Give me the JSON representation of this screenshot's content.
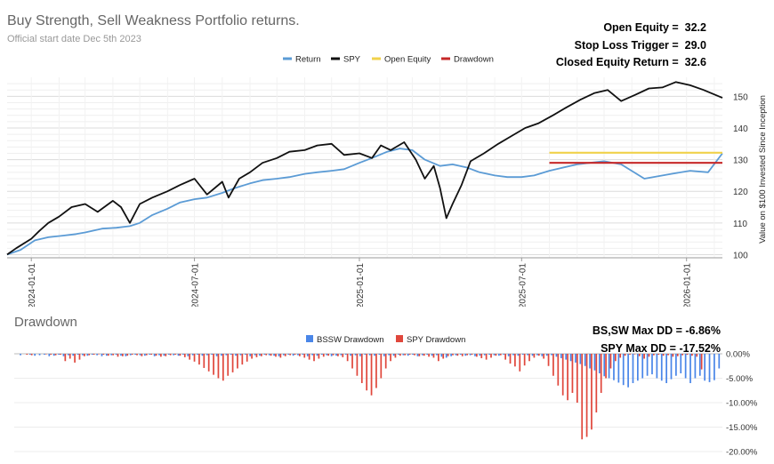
{
  "header": {
    "title": "Buy Strength, Sell Weakness Portfolio returns.",
    "subtitle": "Official start date Dec 5th 2023"
  },
  "stats": [
    {
      "label": "Open Equity =",
      "value": "32.2"
    },
    {
      "label": "Stop Loss Trigger =",
      "value": "29.0"
    },
    {
      "label": "Closed Equity Return =",
      "value": "32.6"
    }
  ],
  "drawdown_header": {
    "title": "Drawdown",
    "stats": [
      {
        "label": "BS,SW Max DD =",
        "value": "-6.86%"
      },
      {
        "label": "SPY Max DD =",
        "value": "-17.52%"
      }
    ]
  },
  "colors": {
    "return": "#5b9bd5",
    "spy": "#111111",
    "open_equity": "#f1d24b",
    "drawdown": "#c62828",
    "bssw_dd": "#4a86e8",
    "spy_dd": "#e0473c",
    "grid": "#e6e6e6"
  },
  "chart_data": [
    {
      "type": "line",
      "ylabel": "Value on $100 Invested Since Inception",
      "ylim": [
        99,
        156
      ],
      "yticks": [
        100,
        110,
        120,
        130,
        140,
        150
      ],
      "xlim": [
        "2023-12-05",
        "2026-02-10"
      ],
      "xticks": [
        "2024-01-01",
        "2024-07-01",
        "2025-01-01",
        "2025-07-01",
        "2026-01-01"
      ],
      "legend_position": "top",
      "series": [
        {
          "name": "Return",
          "color": "#5b9bd5",
          "x": [
            "2023-12-05",
            "2023-12-20",
            "2024-01-05",
            "2024-01-20",
            "2024-02-05",
            "2024-02-20",
            "2024-03-01",
            "2024-03-20",
            "2024-04-05",
            "2024-04-20",
            "2024-05-01",
            "2024-05-15",
            "2024-06-01",
            "2024-06-15",
            "2024-07-01",
            "2024-07-15",
            "2024-08-01",
            "2024-08-15",
            "2024-09-01",
            "2024-09-15",
            "2024-10-01",
            "2024-10-15",
            "2024-11-01",
            "2024-11-15",
            "2024-12-01",
            "2024-12-15",
            "2025-01-01",
            "2025-01-15",
            "2025-02-01",
            "2025-02-15",
            "2025-03-01",
            "2025-03-15",
            "2025-04-01",
            "2025-04-15",
            "2025-05-01",
            "2025-05-15",
            "2025-06-01",
            "2025-06-15",
            "2025-07-01",
            "2025-07-15",
            "2025-08-01",
            "2025-09-01",
            "2025-09-15",
            "2025-10-01",
            "2025-10-20",
            "2025-11-15",
            "2025-12-15",
            "2026-01-05",
            "2026-01-25",
            "2026-02-10"
          ],
          "values": [
            100.0,
            101.5,
            104.5,
            105.5,
            106.0,
            106.5,
            107.0,
            108.2,
            108.5,
            109.0,
            110.0,
            112.5,
            114.5,
            116.5,
            117.5,
            118.0,
            119.5,
            121.0,
            122.5,
            123.5,
            124.0,
            124.5,
            125.5,
            126.0,
            126.5,
            127.0,
            129.0,
            130.5,
            132.5,
            133.5,
            133.0,
            130.0,
            128.0,
            128.5,
            127.5,
            126.0,
            125.0,
            124.5,
            124.5,
            125.0,
            126.5,
            128.5,
            129.0,
            129.5,
            128.5,
            124.0,
            125.5,
            126.5,
            126.0,
            132.0
          ]
        },
        {
          "name": "SPY",
          "color": "#111111",
          "x": [
            "2023-12-05",
            "2023-12-15",
            "2024-01-01",
            "2024-01-10",
            "2024-01-20",
            "2024-02-01",
            "2024-02-15",
            "2024-03-01",
            "2024-03-15",
            "2024-04-01",
            "2024-04-10",
            "2024-04-20",
            "2024-05-01",
            "2024-05-15",
            "2024-06-01",
            "2024-06-15",
            "2024-07-01",
            "2024-07-15",
            "2024-08-01",
            "2024-08-08",
            "2024-08-20",
            "2024-09-01",
            "2024-09-15",
            "2024-10-01",
            "2024-10-15",
            "2024-11-01",
            "2024-11-15",
            "2024-12-01",
            "2024-12-15",
            "2025-01-01",
            "2025-01-15",
            "2025-01-25",
            "2025-02-05",
            "2025-02-20",
            "2025-03-05",
            "2025-03-15",
            "2025-03-25",
            "2025-04-01",
            "2025-04-08",
            "2025-04-15",
            "2025-04-25",
            "2025-05-05",
            "2025-05-20",
            "2025-06-05",
            "2025-06-20",
            "2025-07-05",
            "2025-07-20",
            "2025-08-05",
            "2025-08-20",
            "2025-09-05",
            "2025-09-20",
            "2025-10-05",
            "2025-10-20",
            "2025-11-05",
            "2025-11-20",
            "2025-12-05",
            "2025-12-20",
            "2026-01-05",
            "2026-01-20",
            "2026-02-10"
          ],
          "values": [
            100.0,
            102.0,
            105.0,
            107.5,
            110.0,
            112.0,
            115.0,
            116.0,
            113.5,
            117.0,
            115.0,
            110.0,
            116.0,
            118.0,
            120.0,
            122.0,
            124.0,
            119.0,
            123.0,
            118.0,
            124.0,
            126.0,
            129.0,
            130.5,
            132.5,
            133.0,
            134.5,
            135.0,
            131.5,
            132.0,
            130.5,
            134.5,
            133.0,
            135.5,
            130.0,
            124.0,
            128.0,
            121.0,
            111.5,
            116.0,
            122.0,
            129.5,
            132.0,
            135.0,
            137.5,
            140.0,
            141.5,
            144.0,
            146.5,
            149.0,
            151.0,
            152.0,
            148.5,
            150.5,
            152.5,
            152.8,
            154.5,
            153.5,
            152.0,
            149.5
          ]
        },
        {
          "name": "Open Equity",
          "color": "#f1d24b",
          "x": [
            "2025-08-01",
            "2026-02-10"
          ],
          "values": [
            132.2,
            132.2
          ]
        },
        {
          "name": "Drawdown",
          "color": "#c62828",
          "x": [
            "2025-08-01",
            "2026-02-10"
          ],
          "values": [
            129.0,
            129.0
          ]
        }
      ]
    },
    {
      "type": "bar",
      "title": "Drawdown",
      "ylabel": "",
      "ylim": [
        -20,
        0
      ],
      "yticks": [
        0,
        -5,
        -10,
        -15,
        -20
      ],
      "ytick_labels": [
        "0.00%",
        "-5.00%",
        "-10.00%",
        "-15.00%",
        "-20.00%"
      ],
      "legend_position": "top",
      "series": [
        {
          "name": "BSSW Drawdown",
          "color": "#4a86e8",
          "values": [
            0,
            -0.3,
            0,
            -0.2,
            -0.4,
            -0.3,
            -0.2,
            -0.5,
            -0.4,
            -0.2,
            -0.5,
            -0.3,
            -0.4,
            -0.2,
            -0.3,
            -0.4,
            -0.2,
            -0.3,
            -0.5,
            -0.4,
            -0.3,
            -0.2,
            -0.4,
            -0.5,
            -0.3,
            -0.2,
            -0.3,
            -0.4,
            -0.2,
            -0.5,
            -0.3,
            -0.4,
            -0.2,
            -0.3,
            -0.4,
            -0.2,
            -0.5,
            -0.3,
            -0.2,
            -0.4,
            -0.3,
            -0.2,
            -0.5,
            -0.4,
            -0.3,
            -0.2,
            -0.4,
            -0.3,
            -0.2,
            -0.5,
            -0.3,
            -0.4,
            -0.2,
            -0.3,
            -0.4,
            -0.5,
            -0.3,
            -0.2,
            -0.4,
            -0.3,
            -0.2,
            -0.5,
            -0.3,
            -0.4,
            -0.2,
            -0.3,
            -0.5,
            -0.4,
            -0.3,
            -0.2,
            -0.4,
            -0.3,
            -0.5,
            -0.2,
            -0.3,
            -0.4,
            -0.2,
            -0.5,
            -0.3,
            -0.4,
            -0.2,
            -0.3,
            -0.4,
            -0.2,
            -0.5,
            -0.3,
            -0.2,
            -0.4,
            -0.3,
            -0.6,
            -0.8,
            -0.5,
            -0.3,
            -0.2,
            -0.4,
            -0.3,
            -0.5,
            -0.4,
            -0.3,
            -0.2,
            -0.3,
            -0.4,
            -0.2,
            -0.5,
            -0.3,
            -0.4,
            -0.2,
            -0.3,
            -0.4,
            -0.3,
            -0.5,
            -0.4,
            -0.3,
            -0.6,
            -0.9,
            -1.2,
            -1.5,
            -1.8,
            -2.1,
            -2.5,
            -3.0,
            -3.4,
            -4.0,
            -4.6,
            -5.0,
            -5.4,
            -5.9,
            -6.4,
            -6.86,
            -6.0,
            -5.5,
            -5.0,
            -4.5,
            -4.2,
            -5.0,
            -5.5,
            -6.0,
            -5.2,
            -4.5,
            -4.0,
            -5.0,
            -6.0,
            -5.0,
            -4.5,
            -5.5,
            -5.8,
            -5.4,
            -3.0
          ],
          "note": "approximate per-period values"
        },
        {
          "name": "SPY Drawdown",
          "color": "#e0473c",
          "values": [
            0,
            0,
            -0.2,
            -0.3,
            0,
            0,
            -0.1,
            -0.2,
            -0.3,
            -0.2,
            -1.5,
            -1.0,
            -1.8,
            -1.2,
            -0.5,
            -0.3,
            -0.2,
            -0.1,
            -0.2,
            -0.4,
            -0.3,
            -0.6,
            -0.5,
            -0.4,
            -0.2,
            -0.3,
            -0.5,
            -0.3,
            -0.2,
            -0.4,
            -0.6,
            -0.5,
            -0.3,
            -0.2,
            -0.4,
            -0.7,
            -1.2,
            -1.6,
            -2.2,
            -2.9,
            -3.6,
            -4.3,
            -5.0,
            -5.5,
            -4.5,
            -3.8,
            -3.0,
            -2.2,
            -1.6,
            -1.0,
            -0.7,
            -0.5,
            -0.3,
            -0.4,
            -0.6,
            -0.8,
            -0.5,
            -0.3,
            -0.2,
            -0.5,
            -0.8,
            -1.2,
            -1.5,
            -1.0,
            -0.6,
            -0.4,
            -0.3,
            -0.5,
            -0.7,
            -1.5,
            -3.0,
            -4.5,
            -6.0,
            -7.5,
            -8.5,
            -7.0,
            -5.0,
            -3.0,
            -1.5,
            -0.8,
            -0.4,
            -0.3,
            -0.2,
            -0.3,
            -0.5,
            -0.4,
            -0.6,
            -0.8,
            -1.5,
            -1.0,
            -0.5,
            -0.3,
            -0.4,
            -0.5,
            -0.3,
            -0.2,
            -0.6,
            -0.9,
            -1.2,
            -0.8,
            -0.4,
            -0.3,
            -1.2,
            -2.0,
            -2.6,
            -3.6,
            -2.4,
            -1.5,
            -0.8,
            -0.4,
            -1.0,
            -2.5,
            -4.5,
            -6.5,
            -8.5,
            -9.5,
            -8.0,
            -10.0,
            -17.5,
            -17.0,
            -15.5,
            -12.0,
            -8.0,
            -5.0,
            -3.0,
            -1.5,
            -0.8,
            -0.4,
            -0.2,
            -0.1,
            -0.5,
            -1.0,
            -0.6,
            -0.3,
            -0.2,
            -0.4,
            -0.3,
            -0.6,
            -0.5,
            -0.3,
            -0.2,
            -0.4,
            -0.6,
            -3.2
          ],
          "note": "approximate per-period values"
        }
      ]
    }
  ]
}
